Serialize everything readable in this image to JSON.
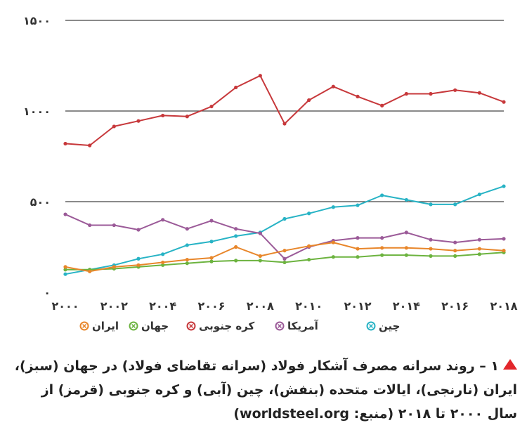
{
  "chart_data": {
    "type": "line",
    "x": [
      2000,
      2001,
      2002,
      2003,
      2004,
      2005,
      2006,
      2007,
      2008,
      2009,
      2010,
      2011,
      2012,
      2013,
      2014,
      2015,
      2016,
      2017,
      2018
    ],
    "xticks": [
      2000,
      2002,
      2004,
      2006,
      2008,
      2010,
      2012,
      2014,
      2016,
      2018
    ],
    "xtick_labels": [
      "۲۰۰۰",
      "۲۰۰۲",
      "۲۰۰۴",
      "۲۰۰۶",
      "۲۰۰۸",
      "۲۰۱۰",
      "۲۰۱۲",
      "۲۰۱۴",
      "۲۰۱۶",
      "۲۰۱۸"
    ],
    "yticks": [
      0,
      500,
      1000,
      1500
    ],
    "ytick_labels": [
      "۰",
      "۵۰۰",
      "۱۰۰۰",
      "۱۵۰۰"
    ],
    "ylim": [
      0,
      1500
    ],
    "xlim": [
      2000,
      2018
    ],
    "grid": "horizontal",
    "legend_position": "bottom",
    "series": [
      {
        "name": "چین",
        "color": "#27b3c5",
        "values": [
          100,
          125,
          150,
          185,
          210,
          260,
          280,
          310,
          330,
          405,
          435,
          470,
          480,
          535,
          510,
          485,
          485,
          540,
          585
        ]
      },
      {
        "name": "آمریکا",
        "color": "#9b5a98",
        "values": [
          430,
          370,
          370,
          345,
          400,
          350,
          395,
          350,
          325,
          185,
          250,
          285,
          300,
          300,
          330,
          290,
          275,
          290,
          295
        ]
      },
      {
        "name": "کره جنوبی",
        "color": "#c7383b",
        "values": [
          820,
          810,
          915,
          945,
          975,
          970,
          1025,
          1130,
          1195,
          930,
          1060,
          1135,
          1080,
          1030,
          1095,
          1095,
          1115,
          1100,
          1050
        ]
      },
      {
        "name": "جهان",
        "color": "#6cb33f",
        "values": [
          125,
          125,
          130,
          140,
          150,
          160,
          170,
          175,
          175,
          165,
          180,
          195,
          195,
          205,
          205,
          200,
          200,
          210,
          220
        ]
      },
      {
        "name": "ایران",
        "color": "#e8862a",
        "values": [
          140,
          115,
          140,
          150,
          165,
          180,
          190,
          250,
          200,
          230,
          255,
          275,
          240,
          245,
          245,
          240,
          230,
          240,
          230
        ]
      }
    ]
  },
  "caption": {
    "figure_number": "۱ –",
    "text": "روند سرانه مصرف آشکار فولاد (سرانه تقاضای فولاد) در جهان (سبز)، ایران (نارنجی)، ایالات متحده (بنفش)، چین (آبی) و کره جنوبی (قرمز) از سال ۲۰۰۰ تا ۲۰۱۸ (منبع: worldsteel.org)"
  }
}
